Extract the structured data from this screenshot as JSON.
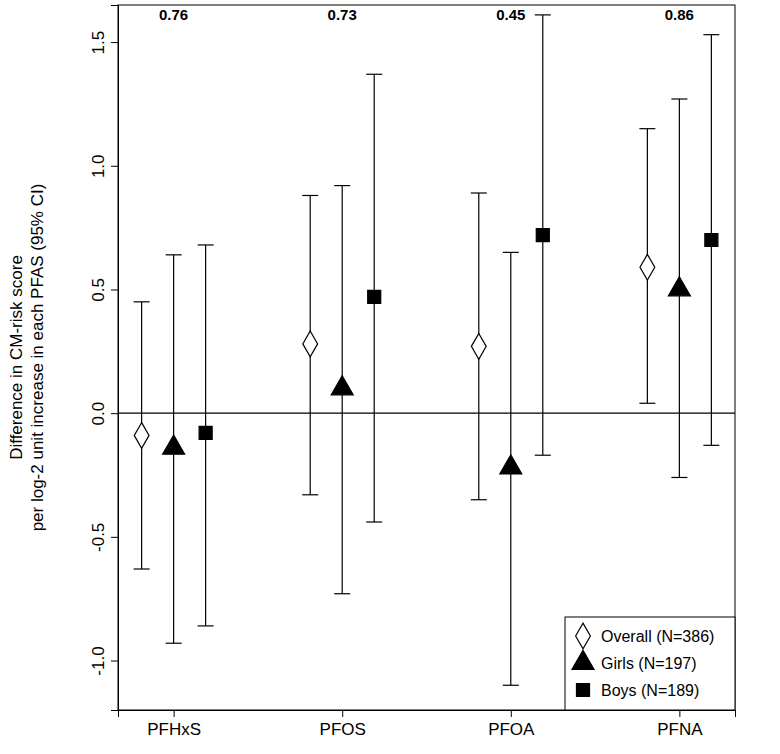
{
  "chart_data": {
    "type": "errorbar",
    "y_label": [
      "Difference in CM-risk score",
      "per log-2 unit increase in each PFAS (95% CI)"
    ],
    "categories": [
      "PFHxS",
      "PFOS",
      "PFOA",
      "PFNA"
    ],
    "p_values": [
      0.76,
      0.73,
      0.45,
      0.86
    ],
    "reference_line": 0,
    "series": [
      {
        "name": "Overall (N=386)",
        "color": "#000000",
        "marker": "diamond-open",
        "values": [
          -0.09,
          0.28,
          0.27,
          0.59
        ],
        "ci_low": [
          -0.63,
          -0.33,
          -0.35,
          0.04
        ],
        "ci_high": [
          0.45,
          0.88,
          0.89,
          1.15
        ]
      },
      {
        "name": "Girls (N=197)",
        "color": "#000000",
        "marker": "triangle",
        "values": [
          -0.14,
          0.1,
          -0.22,
          0.5
        ],
        "ci_low": [
          -0.93,
          -0.73,
          -1.1,
          -0.26
        ],
        "ci_high": [
          0.64,
          0.92,
          0.65,
          1.27
        ]
      },
      {
        "name": "Boys (N=189)",
        "color": "#000000",
        "marker": "square",
        "values": [
          -0.08,
          0.47,
          0.72,
          0.7
        ],
        "ci_low": [
          -0.86,
          -0.44,
          -0.17,
          -0.13
        ],
        "ci_high": [
          0.68,
          1.37,
          1.61,
          1.53
        ]
      }
    ],
    "ylim": [
      -1.2,
      1.65
    ],
    "yticks": [
      {
        "value": -1.0,
        "label": "-1.0"
      },
      {
        "value": -0.5,
        "label": "-0.5"
      },
      {
        "value": 0,
        "label": "0.0"
      },
      {
        "value": 0.5,
        "label": "0.5"
      },
      {
        "value": 1.0,
        "label": "1.0"
      },
      {
        "value": 1.5,
        "label": "1.5"
      }
    ],
    "grid": false,
    "legend": "bottom-right"
  }
}
